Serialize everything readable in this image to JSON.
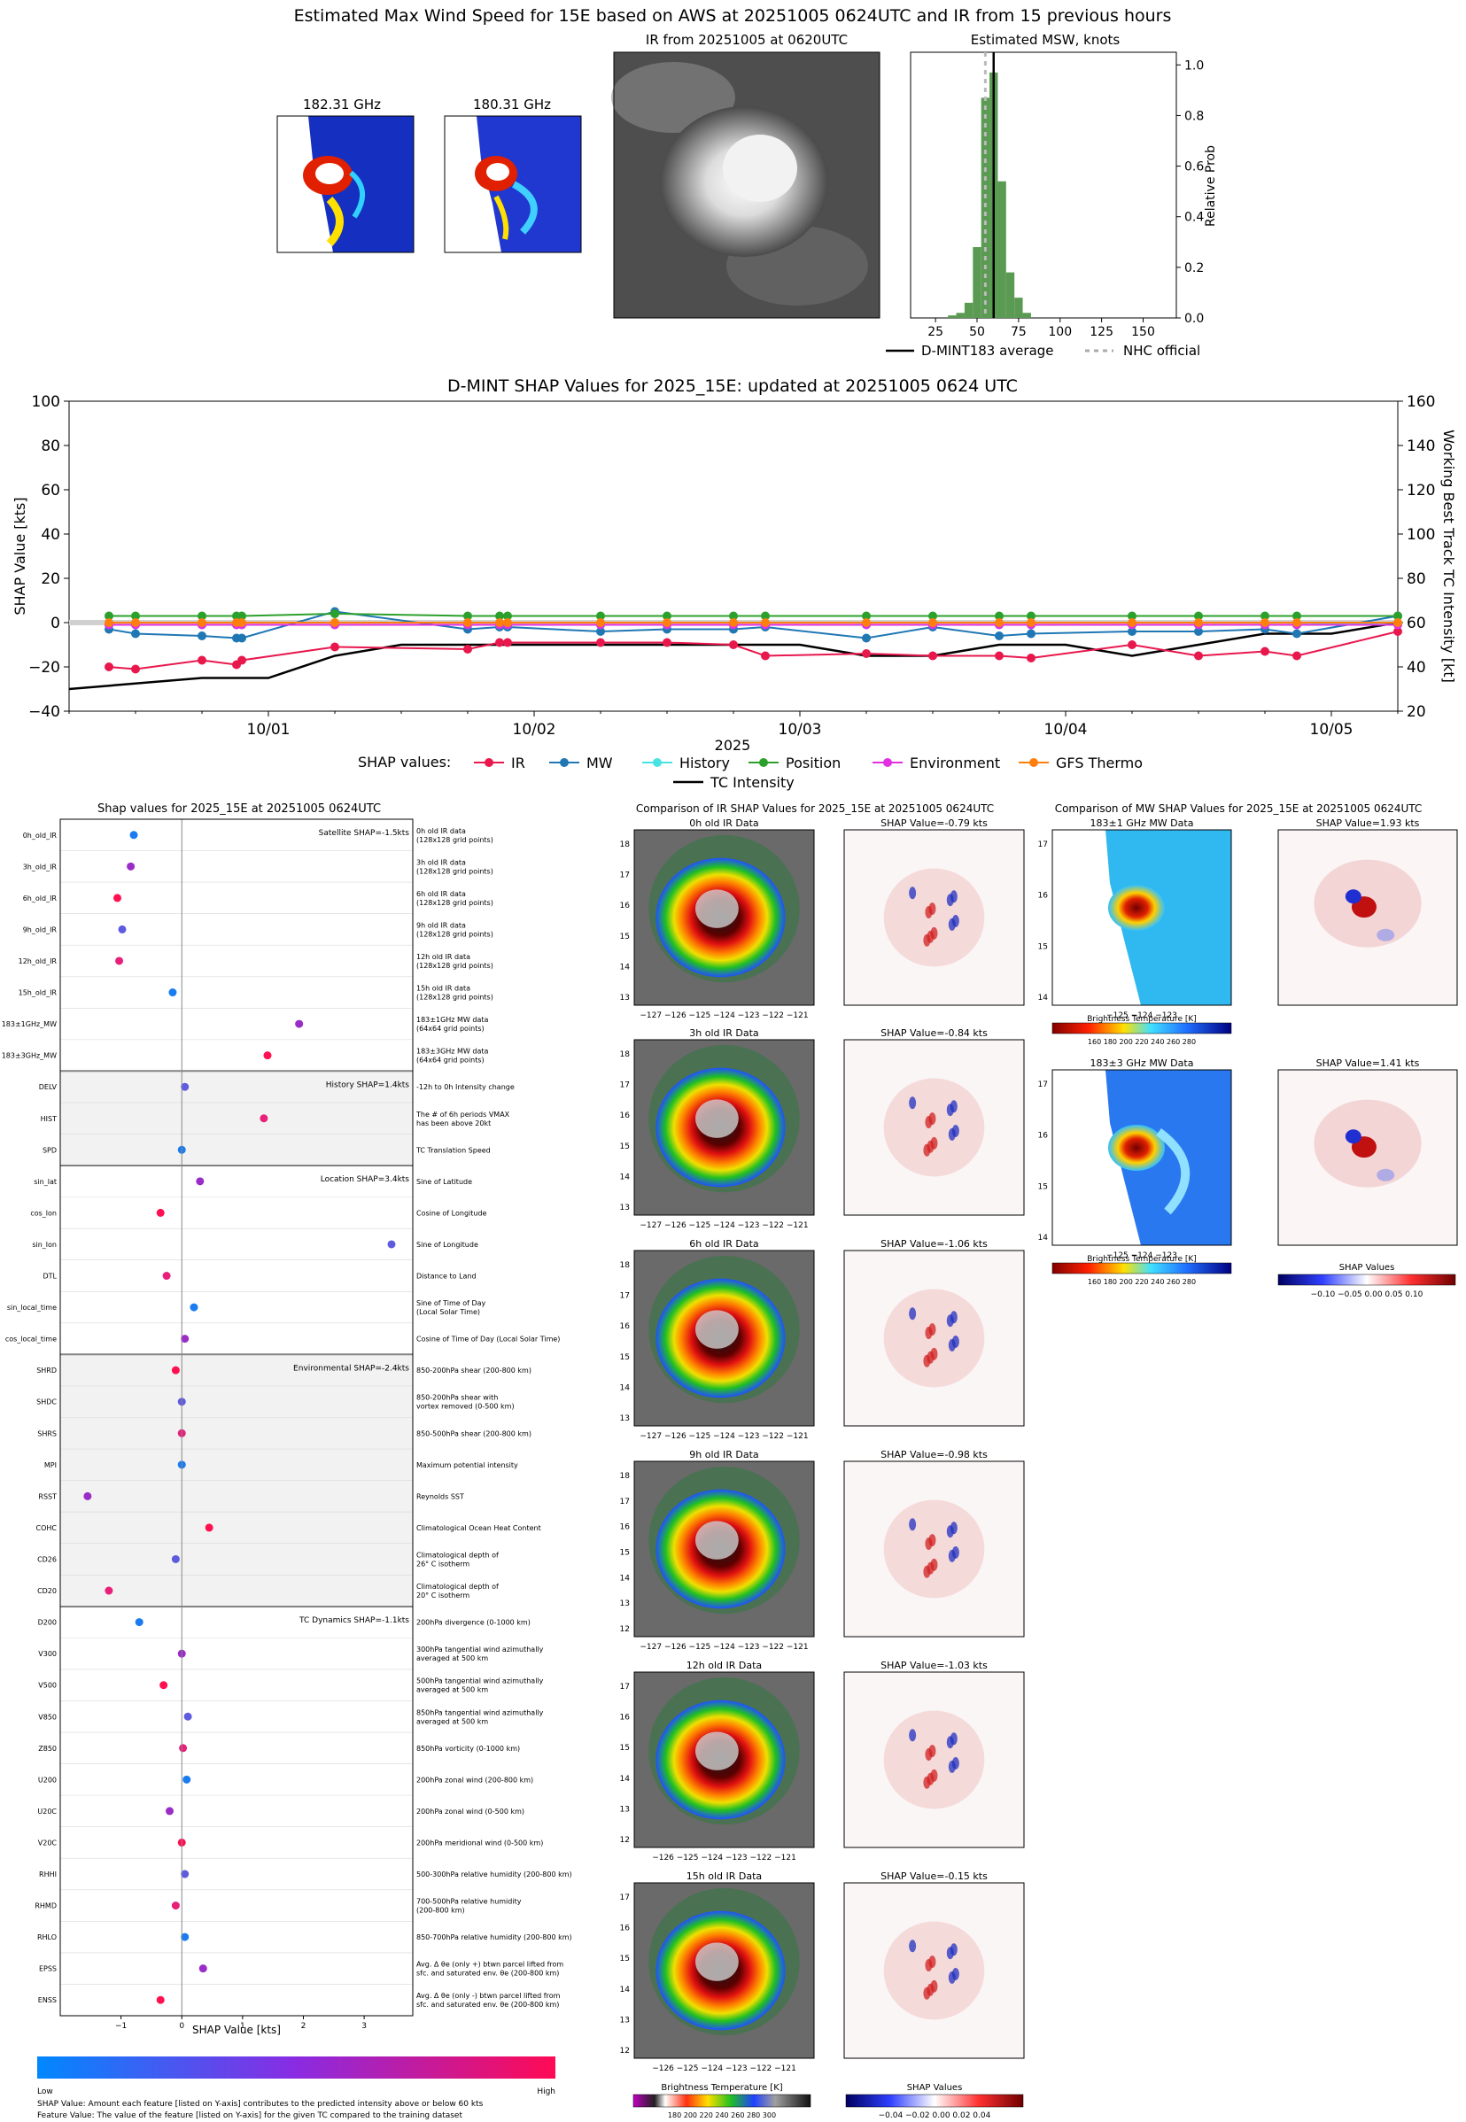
{
  "title": "Estimated Max Wind Speed for 15E based on AWS at 20251005 0624UTC and IR from 15 previous hours",
  "mw_top": [
    {
      "label": "182.31 GHz"
    },
    {
      "label": "180.31 GHz"
    }
  ],
  "ir_top_title": "IR from 20251005 at 0620UTC",
  "msw": {
    "title": "Estimated MSW, knots",
    "ylabel": "Relative Prob",
    "xticks": [
      "25",
      "50",
      "75",
      "100",
      "125",
      "150"
    ],
    "yticks": [
      "0.0",
      "0.2",
      "0.4",
      "0.6",
      "0.8",
      "1.0"
    ],
    "legend_dmint": "D-MINT183 average",
    "legend_nhc": "NHC official"
  },
  "ts": {
    "title": "D-MINT SHAP Values for 2025_15E: updated at 20251005 0624 UTC",
    "ylabel_left": "SHAP Value [kts]",
    "ylabel_right": "Working Best Track TC Intensity [kt]",
    "xlabel": "2025",
    "left_ticks": [
      "100",
      "80",
      "60",
      "40",
      "20",
      "0",
      "−20",
      "−40"
    ],
    "right_ticks": [
      "160",
      "140",
      "120",
      "100",
      "80",
      "60",
      "40",
      "20"
    ],
    "date_ticks": [
      "10/01",
      "10/02",
      "10/03",
      "10/04",
      "10/05"
    ],
    "legend_title": "SHAP values:",
    "legend_items": [
      {
        "label": "IR",
        "color": "#e8184d"
      },
      {
        "label": "MW",
        "color": "#1f77b4"
      },
      {
        "label": "History",
        "color": "#47e2e2"
      },
      {
        "label": "Position",
        "color": "#2ca02c"
      },
      {
        "label": "Environment",
        "color": "#e22fe2"
      },
      {
        "label": "GFS Thermo",
        "color": "#ff7f0e"
      }
    ],
    "legend_tc": "TC Intensity"
  },
  "chart_data": [
    {
      "type": "bar",
      "title": "Estimated MSW, knots",
      "xlabel": "",
      "ylabel": "Relative Prob",
      "xlim": [
        10,
        170
      ],
      "ylim": [
        0,
        1.05
      ],
      "categories": [
        35,
        40,
        45,
        50,
        55,
        60,
        65,
        70,
        75,
        80
      ],
      "values": [
        0.01,
        0.02,
        0.06,
        0.28,
        0.87,
        0.97,
        0.54,
        0.18,
        0.08,
        0.02
      ],
      "series_lines": [
        {
          "name": "D-MINT183 average",
          "x": 60
        },
        {
          "name": "NHC official",
          "x": 55
        }
      ]
    },
    {
      "type": "line",
      "title": "D-MINT SHAP Values for 2025_15E: updated at 20251005 0624 UTC",
      "xlabel": "2025",
      "ylabel": "SHAP Value [kts]",
      "ylim": [
        -40,
        100
      ],
      "y2label": "Working Best Track TC Intensity [kt]",
      "y2lim": [
        20,
        160
      ],
      "x_range_days": [
        -0.75,
        4.25
      ],
      "x_ticks": [
        "10/01",
        "10/02",
        "10/03",
        "10/04",
        "10/05"
      ],
      "x": [
        -0.6,
        -0.5,
        -0.25,
        -0.12,
        -0.1,
        0.25,
        0.75,
        0.87,
        0.9,
        1.25,
        1.5,
        1.75,
        1.87,
        2.25,
        2.5,
        2.75,
        2.87,
        3.25,
        3.5,
        3.75,
        3.87,
        4.25
      ],
      "series": [
        {
          "name": "IR",
          "values": [
            -20,
            -21,
            -17,
            -19,
            -17,
            -11,
            -12,
            -9,
            -9,
            -9,
            -9,
            -10,
            -15,
            -14,
            -15,
            -15,
            -16,
            -10,
            -15,
            -13,
            -15,
            -4
          ]
        },
        {
          "name": "MW",
          "values": [
            -3,
            -5,
            -6,
            -7,
            -7,
            5,
            -3,
            -2,
            -2,
            -4,
            -3,
            -3,
            -2,
            -7,
            -2,
            -6,
            -5,
            -4,
            -4,
            -3,
            -5,
            3
          ]
        },
        {
          "name": "History",
          "values": [
            -1,
            -1,
            -1,
            -1,
            -1,
            -1,
            -1,
            -1,
            -1,
            -1,
            -1,
            -1,
            -1,
            -1,
            -1,
            -1,
            -1,
            -1,
            -1,
            -1,
            -1,
            0
          ]
        },
        {
          "name": "Position",
          "values": [
            3,
            3,
            3,
            3,
            3,
            4,
            3,
            3,
            3,
            3,
            3,
            3,
            3,
            3,
            3,
            3,
            3,
            3,
            3,
            3,
            3,
            3
          ]
        },
        {
          "name": "Environment",
          "values": [
            -1,
            -1,
            -1,
            -1,
            -1,
            -1,
            -1,
            -1,
            -1,
            -1,
            -1,
            -1,
            -1,
            -1,
            -1,
            -1,
            -1,
            -1,
            -1,
            -1,
            -1,
            -1
          ]
        },
        {
          "name": "GFS Thermo",
          "values": [
            0,
            0,
            0,
            0,
            0,
            0,
            0,
            0,
            0,
            0,
            0,
            0,
            0,
            0,
            0,
            0,
            0,
            0,
            0,
            0,
            0,
            0
          ]
        }
      ],
      "tc_intensity": {
        "x": [
          -0.75,
          -0.25,
          0,
          0.25,
          0.5,
          0.75,
          1.0,
          1.25,
          1.5,
          1.75,
          2.0,
          2.25,
          2.5,
          2.75,
          3.0,
          3.25,
          3.5,
          3.75,
          4.0,
          4.25
        ],
        "values": [
          30,
          35,
          35,
          45,
          50,
          50,
          50,
          50,
          50,
          50,
          50,
          45,
          45,
          50,
          50,
          45,
          50,
          55,
          55,
          60
        ]
      }
    },
    {
      "type": "scatter",
      "title": "Shap values for 2025_15E at 20251005 0624UTC",
      "xlabel": "SHAP Value [kts]",
      "xlim": [
        -2,
        3.8
      ],
      "features": [
        "0h_old_IR",
        "3h_old_IR",
        "6h_old_IR",
        "9h_old_IR",
        "12h_old_IR",
        "15h_old_IR",
        "183±1GHz_MW",
        "183±3GHz_MW",
        "DELV",
        "HIST",
        "SPD",
        "sin_lat",
        "cos_lon",
        "sin_lon",
        "DTL",
        "sin_local_time",
        "cos_local_time",
        "SHRD",
        "SHDC",
        "SHRS",
        "MPI",
        "RSST",
        "COHC",
        "CD26",
        "CD20",
        "D200",
        "V300",
        "V500",
        "V850",
        "Z850",
        "U200",
        "U20C",
        "V20C",
        "RHHI",
        "RHMD",
        "RHLO",
        "EPSS",
        "ENSS"
      ],
      "values": [
        -0.79,
        -0.84,
        -1.06,
        -0.98,
        -1.03,
        -0.15,
        1.93,
        1.41,
        0.05,
        1.35,
        0.0,
        0.3,
        -0.35,
        3.45,
        -0.25,
        0.2,
        0.05,
        -0.1,
        0.0,
        0.0,
        0.0,
        -1.55,
        0.45,
        -0.1,
        -1.2,
        -0.7,
        0.0,
        -0.3,
        0.1,
        0.02,
        0.08,
        -0.2,
        0.0,
        0.05,
        -0.1,
        0.05,
        0.35,
        -0.35
      ]
    }
  ],
  "shap": {
    "title": "Shap values for 2025_15E at 20251005 0624UTC",
    "xlabel": "SHAP Value [kts]",
    "xticks": [
      "−1",
      "0",
      "1",
      "2",
      "3"
    ],
    "groups": [
      {
        "label": "Satellite SHAP=-1.5kts",
        "start": 0,
        "end": 8,
        "shade": false
      },
      {
        "label": "History SHAP=1.4kts",
        "start": 8,
        "end": 11,
        "shade": true
      },
      {
        "label": "Location SHAP=3.4kts",
        "start": 11,
        "end": 17,
        "shade": false
      },
      {
        "label": "Environmental SHAP=-2.4kts",
        "start": 17,
        "end": 25,
        "shade": true
      },
      {
        "label": "TC Dynamics SHAP=-1.1kts",
        "start": 25,
        "end": 38,
        "shade": false
      }
    ],
    "descriptions": [
      [
        "0h old IR data",
        "(128x128 grid points)"
      ],
      [
        "3h old IR data",
        "(128x128 grid points)"
      ],
      [
        "6h old IR data",
        "(128x128 grid points)"
      ],
      [
        "9h old IR data",
        "(128x128 grid points)"
      ],
      [
        "12h old IR data",
        "(128x128 grid points)"
      ],
      [
        "15h old IR data",
        "(128x128 grid points)"
      ],
      [
        "183±1GHz MW data",
        "(64x64 grid points)"
      ],
      [
        "183±3GHz MW data",
        "(64x64 grid points)"
      ],
      [
        "-12h to 0h Intensity change"
      ],
      [
        "The # of 6h periods VMAX",
        "has been above 20kt"
      ],
      [
        "TC Translation Speed"
      ],
      [
        "Sine of Latitude"
      ],
      [
        "Cosine of Longitude"
      ],
      [
        "Sine of Longitude"
      ],
      [
        "Distance to Land"
      ],
      [
        "Sine of Time of Day",
        "(Local Solar Time)"
      ],
      [
        "Cosine of Time of Day (Local Solar Time)"
      ],
      [
        "850-200hPa shear (200-800 km)"
      ],
      [
        "850-200hPa shear with",
        "vortex removed (0-500 km)"
      ],
      [
        "850-500hPa shear (200-800 km)"
      ],
      [
        "Maximum potential intensity"
      ],
      [
        "Reynolds SST"
      ],
      [
        "Climatological Ocean Heat Content"
      ],
      [
        "Climatological depth of",
        "26° C isotherm"
      ],
      [
        "Climatological depth of",
        "20° C isotherm"
      ],
      [
        "200hPa divergence (0-1000 km)"
      ],
      [
        "300hPa tangential wind azimuthally",
        "averaged at 500 km"
      ],
      [
        "500hPa tangential wind azimuthally",
        "averaged at 500 km"
      ],
      [
        "850hPa tangential wind azimuthally",
        "averaged at 500 km"
      ],
      [
        "850hPa vorticity (0-1000 km)"
      ],
      [
        "200hPa zonal wind (200-800 km)"
      ],
      [
        "200hPa zonal wind (0-500 km)"
      ],
      [
        "200hPa meridional wind (0-500 km)"
      ],
      [
        "500-300hPa relative humidity (200-800 km)"
      ],
      [
        "700-500hPa relative humidity",
        "(200-800 km)"
      ],
      [
        "850-700hPa relative humidity (200-800 km)"
      ],
      [
        "Avg. Δ θe (only +) btwn parcel lifted from",
        "sfc. and saturated env. θe (200-800 km)"
      ],
      [
        "Avg. Δ θe (only -) btwn parcel lifted from",
        "sfc. and saturated env. θe (200-800 km)"
      ]
    ],
    "colorbar_low": "Low",
    "colorbar_high": "High",
    "note1": "SHAP Value: Amount each feature [listed on Y-axis] contributes to the predicted intensity above or below 60 kts",
    "note2": "Feature Value: The value of the feature [listed on Y-axis] for the given TC compared to the training dataset"
  },
  "ir_compare": {
    "title": "Comparison of IR SHAP Values for 2025_15E at 20251005 0624UTC",
    "rows": [
      {
        "data_title": "0h old IR Data",
        "shap_title": "SHAP Value=-0.79 kts",
        "yticks": [
          "18",
          "17",
          "16",
          "15",
          "14",
          "13"
        ]
      },
      {
        "data_title": "3h old IR Data",
        "shap_title": "SHAP Value=-0.84 kts",
        "yticks": [
          "18",
          "17",
          "16",
          "15",
          "14",
          "13"
        ]
      },
      {
        "data_title": "6h old IR Data",
        "shap_title": "SHAP Value=-1.06 kts",
        "yticks": [
          "18",
          "17",
          "16",
          "15",
          "14",
          "13"
        ]
      },
      {
        "data_title": "9h old IR Data",
        "shap_title": "SHAP Value=-0.98 kts",
        "yticks": [
          "18",
          "17",
          "16",
          "15",
          "14",
          "13",
          "12"
        ]
      },
      {
        "data_title": "12h old IR Data",
        "shap_title": "SHAP Value=-1.03 kts",
        "yticks": [
          "17",
          "16",
          "15",
          "14",
          "13",
          "12"
        ]
      },
      {
        "data_title": "15h old IR Data",
        "shap_title": "SHAP Value=-0.15 kts",
        "yticks": [
          "17",
          "16",
          "15",
          "14",
          "13",
          "12"
        ]
      }
    ],
    "xticks_a": "−127 −126 −125 −124 −123 −122 −121",
    "xticks_b": "−126 −125 −124 −123 −122 −121",
    "cbar_title": "Brightness Temperature [K]",
    "cbar_ticks": "180  200  220  240  260  280  300",
    "shap_cbar_title": "SHAP Values",
    "shap_cbar_ticks": "−0.04  −0.02  0.00  0.02  0.04"
  },
  "mw_compare": {
    "title": "Comparison of MW SHAP Values for 2025_15E at 20251005 0624UTC",
    "rows": [
      {
        "data_title": "183±1 GHz MW Data",
        "shap_title": "SHAP Value=1.93 kts"
      },
      {
        "data_title": "183±3 GHz MW Data",
        "shap_title": "SHAP Value=1.41 kts"
      }
    ],
    "yticks": [
      "17",
      "16",
      "15",
      "14"
    ],
    "xticks": "−125        −124        −123",
    "cbar_title": "Brightness Temperature [K]",
    "cbar_ticks": "160  180  200  220  240  260  280",
    "shap_cbar_title": "SHAP Values",
    "shap_cbar_ticks": "−0.10  −0.05  0.00  0.05  0.10"
  }
}
